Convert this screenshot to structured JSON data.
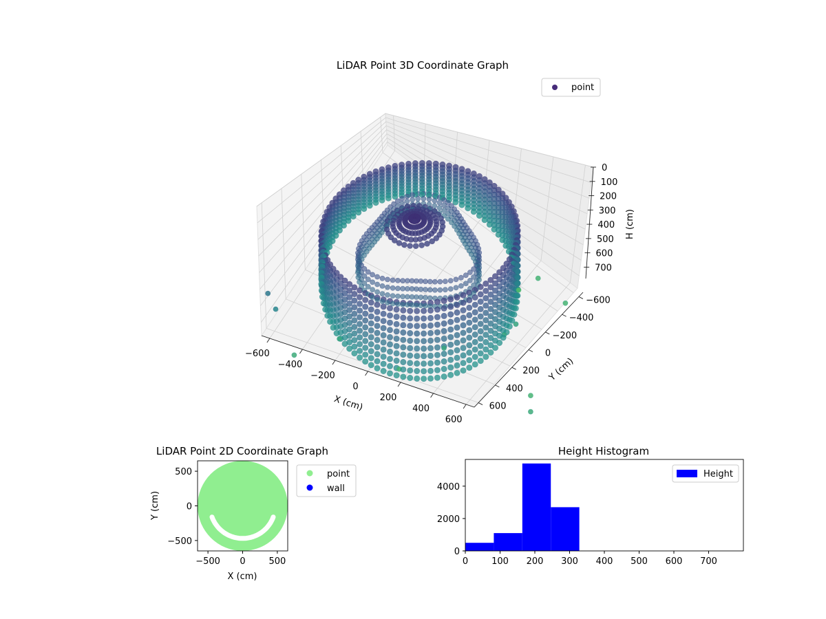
{
  "chart_data": [
    {
      "type": "scatter3d",
      "title": "LiDAR Point 3D Coordinate Graph",
      "xlabel": "X (cm)",
      "ylabel": "Y (cm)",
      "zlabel": "H (cm)",
      "xticks": [
        "−600",
        "−400",
        "−200",
        "0",
        "200",
        "400",
        "600"
      ],
      "yticks": [
        "−600",
        "−400",
        "−200",
        "0",
        "200",
        "400",
        "600"
      ],
      "zticks": [
        "0",
        "100",
        "200",
        "300",
        "400",
        "500",
        "600",
        "700"
      ],
      "xlim": [
        -650,
        650
      ],
      "ylim": [
        -650,
        650
      ],
      "zlim": [
        0,
        780
      ],
      "z_inverted": true,
      "legend": [
        {
          "label": "point",
          "color": "#472c7a"
        }
      ],
      "legend_loc": "upper right",
      "colormap": "viridis",
      "grid": true,
      "ring_wall": {
        "radius": 560,
        "h_top": 190,
        "h_bottom": 620
      },
      "center_cluster": {
        "radius": 170,
        "h": 200
      },
      "outliers": [
        {
          "x": -630,
          "y": 620,
          "h": 450
        },
        {
          "x": -640,
          "y": 560,
          "h": 520
        },
        {
          "x": -660,
          "y": 420,
          "h": 730
        },
        {
          "x": -450,
          "y": 250,
          "h": 700
        },
        {
          "x": -330,
          "y": -80,
          "h": 780
        },
        {
          "x": -140,
          "y": -260,
          "h": 700
        },
        {
          "x": 120,
          "y": -500,
          "h": 690
        },
        {
          "x": 210,
          "y": -520,
          "h": 690
        },
        {
          "x": 540,
          "y": -640,
          "h": 780
        },
        {
          "x": 560,
          "y": -440,
          "h": 780
        },
        {
          "x": 480,
          "y": -360,
          "h": 850
        },
        {
          "x": 0,
          "y": -760,
          "h": 780
        },
        {
          "x": -120,
          "y": -840,
          "h": 730
        }
      ]
    },
    {
      "type": "scatter",
      "title": "LiDAR Point 2D Coordinate Graph",
      "xlabel": "X (cm)",
      "ylabel": "Y (cm)",
      "xticks": [
        "−500",
        "0",
        "500"
      ],
      "yticks": [
        "−500",
        "0",
        "500"
      ],
      "xlim": [
        -650,
        650
      ],
      "ylim": [
        -650,
        650
      ],
      "legend": [
        {
          "label": "point",
          "color": "#90ee90"
        },
        {
          "label": "wall",
          "color": "#0000ff"
        }
      ],
      "legend_loc": "outside upper right",
      "disk_radius": 650
    },
    {
      "type": "bar",
      "title": "Height Histogram",
      "xticks": [
        "0",
        "100",
        "200",
        "300",
        "400",
        "500",
        "600",
        "700"
      ],
      "yticks": [
        "0",
        "2000",
        "4000"
      ],
      "xlim": [
        0,
        800
      ],
      "ylim": [
        0,
        5650
      ],
      "series": [
        {
          "name": "Height",
          "color": "#0000ff",
          "bins": [
            {
              "x0": 0,
              "x1": 82,
              "count": 500
            },
            {
              "x0": 82,
              "x1": 164,
              "count": 1100
            },
            {
              "x0": 164,
              "x1": 246,
              "count": 5400
            },
            {
              "x0": 246,
              "x1": 328,
              "count": 2700
            }
          ]
        }
      ],
      "legend_loc": "upper right"
    }
  ]
}
